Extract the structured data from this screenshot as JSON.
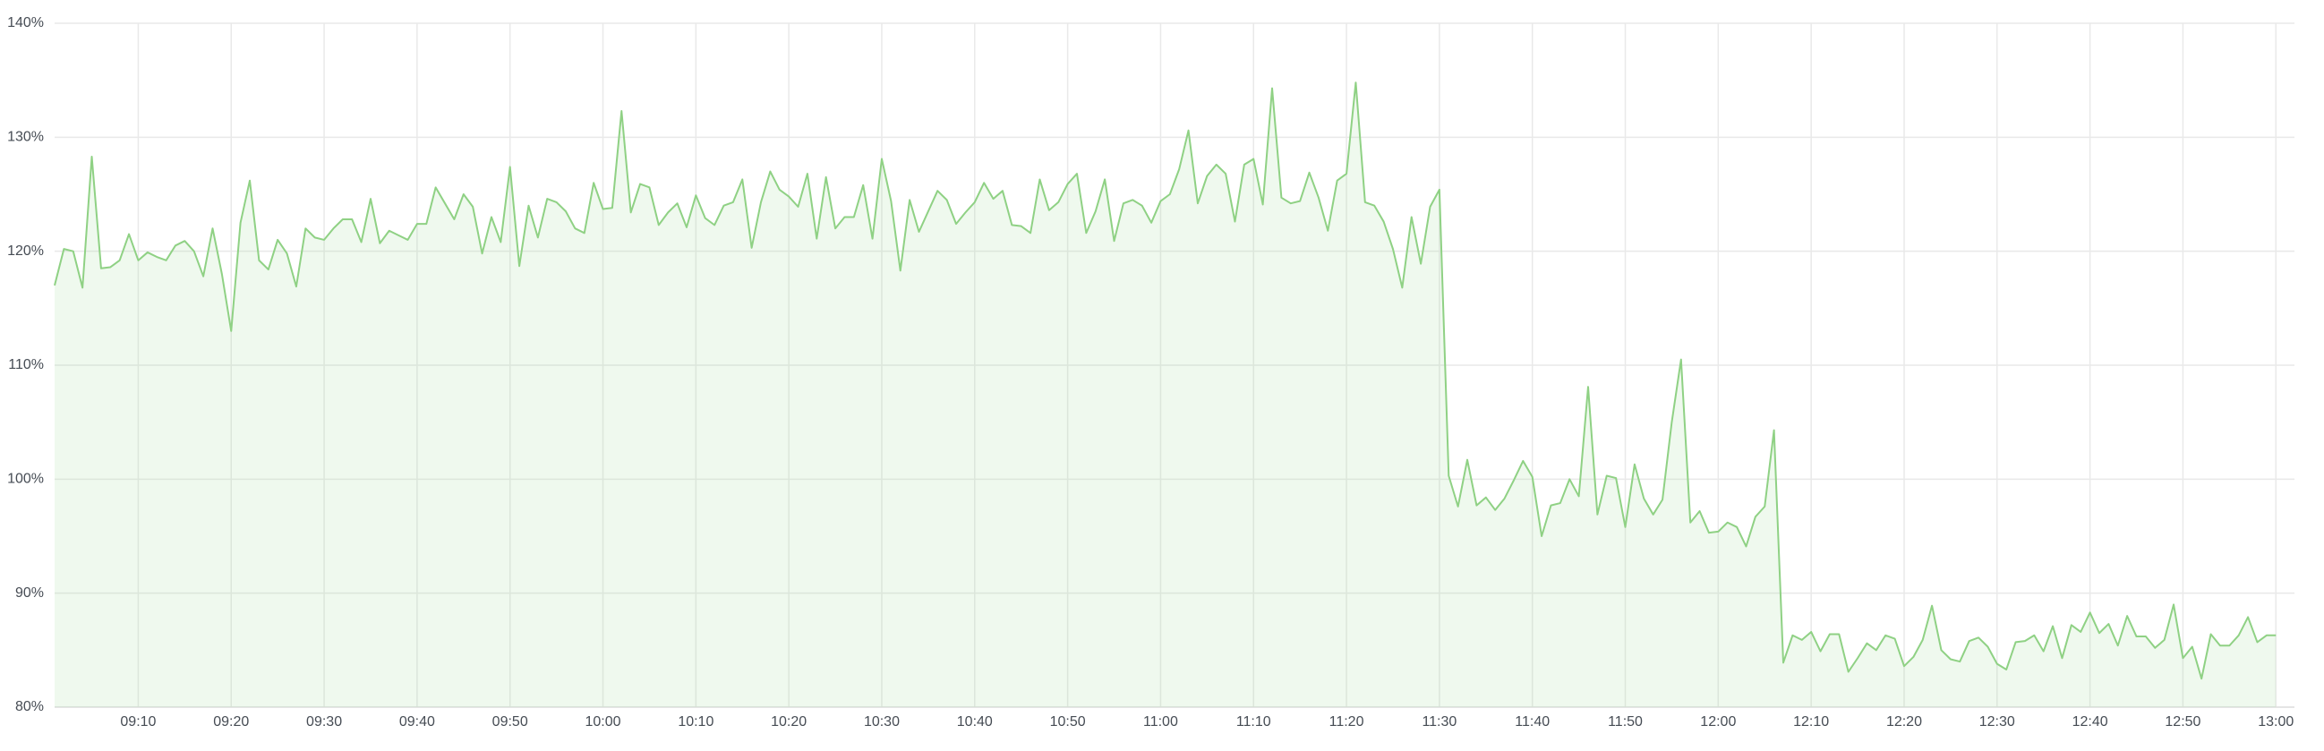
{
  "chart_data": {
    "type": "area",
    "x": [
      "09:01",
      "09:02",
      "09:03",
      "09:04",
      "09:05",
      "09:06",
      "09:07",
      "09:08",
      "09:09",
      "09:10",
      "09:11",
      "09:12",
      "09:13",
      "09:14",
      "09:15",
      "09:16",
      "09:17",
      "09:18",
      "09:19",
      "09:20",
      "09:21",
      "09:22",
      "09:23",
      "09:24",
      "09:25",
      "09:26",
      "09:27",
      "09:28",
      "09:29",
      "09:30",
      "09:31",
      "09:32",
      "09:33",
      "09:34",
      "09:35",
      "09:36",
      "09:37",
      "09:38",
      "09:39",
      "09:40",
      "09:41",
      "09:42",
      "09:43",
      "09:44",
      "09:45",
      "09:46",
      "09:47",
      "09:48",
      "09:49",
      "09:50",
      "09:51",
      "09:52",
      "09:53",
      "09:54",
      "09:55",
      "09:56",
      "09:57",
      "09:58",
      "09:59",
      "10:00",
      "10:01",
      "10:02",
      "10:03",
      "10:04",
      "10:05",
      "10:06",
      "10:07",
      "10:08",
      "10:09",
      "10:10",
      "10:11",
      "10:12",
      "10:13",
      "10:14",
      "10:15",
      "10:16",
      "10:17",
      "10:18",
      "10:19",
      "10:20",
      "10:21",
      "10:22",
      "10:23",
      "10:24",
      "10:25",
      "10:26",
      "10:27",
      "10:28",
      "10:29",
      "10:30",
      "10:31",
      "10:32",
      "10:33",
      "10:34",
      "10:35",
      "10:36",
      "10:37",
      "10:38",
      "10:39",
      "10:40",
      "10:41",
      "10:42",
      "10:43",
      "10:44",
      "10:45",
      "10:46",
      "10:47",
      "10:48",
      "10:49",
      "10:50",
      "10:51",
      "10:52",
      "10:53",
      "10:54",
      "10:55",
      "10:56",
      "10:57",
      "10:58",
      "10:59",
      "11:00",
      "11:01",
      "11:02",
      "11:03",
      "11:04",
      "11:05",
      "11:06",
      "11:07",
      "11:08",
      "11:09",
      "11:10",
      "11:11",
      "11:12",
      "11:13",
      "11:14",
      "11:15",
      "11:16",
      "11:17",
      "11:18",
      "11:19",
      "11:20",
      "11:21",
      "11:22",
      "11:23",
      "11:24",
      "11:25",
      "11:26",
      "11:27",
      "11:28",
      "11:29",
      "11:30",
      "11:31",
      "11:32",
      "11:33",
      "11:34",
      "11:35",
      "11:36",
      "11:37",
      "11:38",
      "11:39",
      "11:40",
      "11:41",
      "11:42",
      "11:43",
      "11:44",
      "11:45",
      "11:46",
      "11:47",
      "11:48",
      "11:49",
      "11:50",
      "11:51",
      "11:52",
      "11:53",
      "11:54",
      "11:55",
      "11:56",
      "11:57",
      "11:58",
      "11:59",
      "12:00",
      "12:01",
      "12:02",
      "12:03",
      "12:04",
      "12:05",
      "12:06",
      "12:07",
      "12:08",
      "12:09",
      "12:10",
      "12:11",
      "12:12",
      "12:13",
      "12:14",
      "12:15",
      "12:16",
      "12:17",
      "12:18",
      "12:19",
      "12:20",
      "12:21",
      "12:22",
      "12:23",
      "12:24",
      "12:25",
      "12:26",
      "12:27",
      "12:28",
      "12:29",
      "12:30",
      "12:31",
      "12:32",
      "12:33",
      "12:34",
      "12:35",
      "12:36",
      "12:37",
      "12:38",
      "12:39",
      "12:40",
      "12:41",
      "12:42",
      "12:43",
      "12:44",
      "12:45",
      "12:46",
      "12:47",
      "12:48",
      "12:49",
      "12:50",
      "12:51",
      "12:52",
      "12:53",
      "12:54",
      "12:55",
      "12:56",
      "12:57",
      "12:58",
      "12:59",
      "13:00"
    ],
    "values": [
      117,
      120.2,
      120,
      116.8,
      128.3,
      118.5,
      118.6,
      119.2,
      121.5,
      119.2,
      119.9,
      119.5,
      119.2,
      120.5,
      120.9,
      120,
      117.8,
      122,
      118,
      113,
      122.5,
      126.2,
      119.2,
      118.4,
      121,
      119.8,
      116.9,
      122,
      121.2,
      121,
      122,
      122.8,
      122.8,
      120.8,
      124.6,
      120.7,
      121.8,
      121.4,
      121,
      122.4,
      122.4,
      125.6,
      124.2,
      122.8,
      125,
      123.9,
      119.8,
      123,
      120.8,
      127.4,
      118.7,
      124,
      121.2,
      124.6,
      124.3,
      123.5,
      122,
      121.6,
      126,
      123.7,
      123.8,
      132.3,
      123.4,
      125.9,
      125.6,
      122.3,
      123.4,
      124.2,
      122.1,
      124.9,
      122.9,
      122.3,
      124,
      124.3,
      126.3,
      120.3,
      124.3,
      127,
      125.4,
      124.8,
      123.9,
      126.8,
      121.1,
      126.5,
      122,
      123,
      123,
      125.8,
      121.1,
      128.1,
      124.4,
      118.3,
      124.5,
      121.7,
      123.5,
      125.3,
      124.5,
      122.4,
      123.4,
      124.3,
      126,
      124.6,
      125.3,
      122.3,
      122.2,
      121.6,
      126.3,
      123.6,
      124.3,
      125.9,
      126.8,
      121.6,
      123.5,
      126.3,
      120.9,
      124.2,
      124.5,
      124,
      122.5,
      124.4,
      125,
      127.2,
      130.6,
      124.2,
      126.6,
      127.6,
      126.8,
      122.6,
      127.6,
      128.1,
      124.1,
      134.3,
      124.7,
      124.2,
      124.4,
      126.9,
      124.7,
      121.8,
      126.2,
      126.8,
      134.8,
      124.3,
      124,
      122.6,
      120.2,
      116.8,
      123,
      118.9,
      123.9,
      125.4,
      100.3,
      97.6,
      101.7,
      97.7,
      98.4,
      97.3,
      98.3,
      99.9,
      101.6,
      100.2,
      95,
      97.7,
      97.9,
      100,
      98.5,
      108.1,
      96.9,
      100.3,
      100.1,
      95.8,
      101.3,
      98.3,
      96.9,
      98.2,
      105,
      110.5,
      96.2,
      97.2,
      95.3,
      95.4,
      96.2,
      95.8,
      94.1,
      96.7,
      97.6,
      104.3,
      83.9,
      86.3,
      85.9,
      86.6,
      84.9,
      86.4,
      86.4,
      83.1,
      84.3,
      85.6,
      85,
      86.3,
      86,
      83.6,
      84.4,
      85.9,
      88.9,
      85,
      84.2,
      84,
      85.8,
      86.1,
      85.3,
      83.8,
      83.3,
      85.7,
      85.8,
      86.3,
      84.9,
      87.1,
      84.3,
      87.2,
      86.6,
      88.3,
      86.5,
      87.3,
      85.4,
      88,
      86.2,
      86.2,
      85.2,
      85.9,
      89,
      84.3,
      85.3,
      82.5,
      86.4,
      85.4,
      85.4,
      86.3,
      87.9,
      85.7,
      86.3,
      86.3
    ],
    "color": "#8fd184",
    "xlim": [
      "09:01",
      "13:02"
    ],
    "xticks": [
      "09:10",
      "09:20",
      "09:30",
      "09:40",
      "09:50",
      "10:00",
      "10:10",
      "10:20",
      "10:30",
      "10:40",
      "10:50",
      "11:00",
      "11:10",
      "11:20",
      "11:30",
      "11:40",
      "11:50",
      "12:00",
      "12:10",
      "12:20",
      "12:30",
      "12:40",
      "12:50",
      "13:00"
    ],
    "ylim": [
      80,
      140
    ],
    "yticks": [
      {
        "value": 80,
        "label": "80%"
      },
      {
        "value": 90,
        "label": "90%"
      },
      {
        "value": 100,
        "label": "100%"
      },
      {
        "value": 110,
        "label": "110%"
      },
      {
        "value": 120,
        "label": "120%"
      },
      {
        "value": 130,
        "label": "130%"
      },
      {
        "value": 140,
        "label": "140%"
      }
    ],
    "grid": true
  }
}
